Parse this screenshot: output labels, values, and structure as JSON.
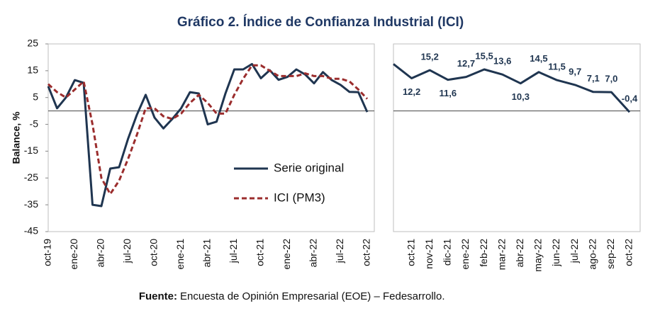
{
  "title": "Gráfico 2. Índice de Confianza Industrial (ICI)",
  "source_label": "Fuente:",
  "source": "Encuesta de Opinión Empresarial (EOE) – Fedesarrollo.",
  "chart_data": [
    {
      "type": "line",
      "ylabel": "Balance, %",
      "categories": [
        "oct-19",
        null,
        null,
        "ene-20",
        null,
        null,
        "abr-20",
        null,
        null,
        "jul-20",
        null,
        null,
        "oct-20",
        null,
        null,
        "ene-21",
        null,
        null,
        "abr-21",
        null,
        null,
        "jul-21",
        null,
        null,
        "oct-21",
        null,
        null,
        "ene-22",
        null,
        null,
        "abr-22",
        null,
        null,
        "jul-22",
        null,
        null,
        "oct-22"
      ],
      "series": [
        {
          "name": "Serie original",
          "color": "#1f3550",
          "dash": false,
          "values": [
            9.2,
            1,
            5,
            11.5,
            10.5,
            -35,
            -35.5,
            -21.5,
            -21,
            -10.5,
            -1.5,
            6,
            -2.5,
            -6.5,
            -3,
            1,
            7,
            6.5,
            -5,
            -4,
            6.5,
            15.5,
            15.5,
            17.5,
            12.2,
            15.2,
            11.6,
            12.7,
            15.5,
            13.6,
            10.3,
            14.5,
            11.5,
            9.7,
            7.1,
            7.0,
            -0.4
          ]
        },
        {
          "name": "ICI (PM3)",
          "color": "#9b2d2d",
          "dash": true,
          "values": [
            10,
            7,
            5,
            8,
            11,
            -5,
            -25,
            -31,
            -26,
            -18,
            -9,
            1,
            1,
            -2,
            -3,
            -1,
            3,
            6,
            3,
            -1,
            -1,
            6,
            12,
            17,
            17,
            15,
            13,
            13,
            13,
            14,
            13,
            13,
            12,
            12,
            11,
            8,
            4.5
          ]
        }
      ],
      "ylim": [
        -45,
        25
      ],
      "yticks": [
        25,
        15,
        5,
        -5,
        -15,
        -25,
        -35,
        -45
      ],
      "hline": 0,
      "legend": "lower right"
    },
    {
      "type": "line",
      "categories": [
        null,
        "oct-21",
        "nov-21",
        "dic-21",
        "ene-22",
        "feb-22",
        "mar-22",
        "abr-22",
        "may-22",
        "jun-22",
        "jul-22",
        "ago-22",
        "sep-22",
        "oct-22"
      ],
      "series": [
        {
          "color": "#1f3550",
          "values": [
            17.5,
            12.2,
            15.2,
            11.6,
            12.7,
            15.5,
            13.6,
            10.3,
            14.5,
            11.5,
            9.7,
            7.1,
            7.0,
            -0.4
          ],
          "value_labels": [
            null,
            "12,2",
            "15,2",
            "11,6",
            "12,7",
            "15,5",
            "13,6",
            "10,3",
            "14,5",
            "11,5",
            "9,7",
            "7,1",
            "7,0",
            "-0,4"
          ]
        }
      ],
      "ylim": [
        -45,
        25
      ],
      "hline": 0
    }
  ]
}
